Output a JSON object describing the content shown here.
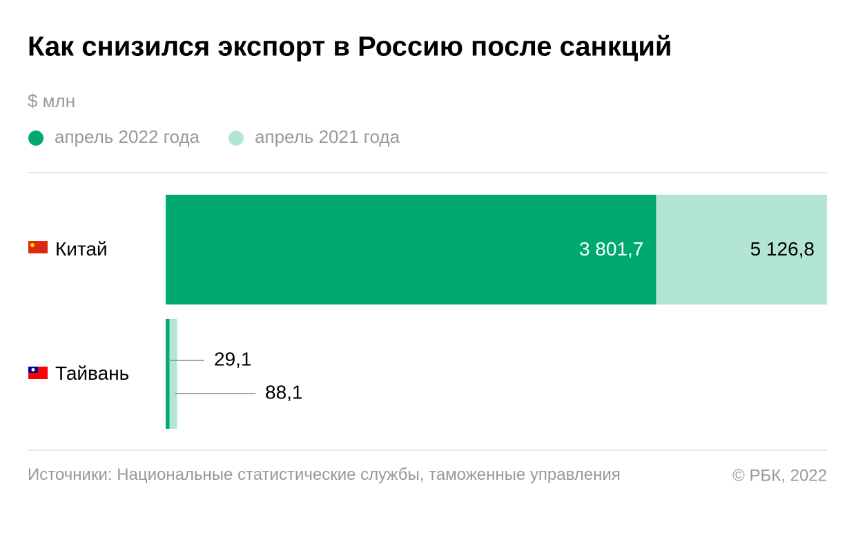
{
  "chart_data": {
    "type": "bar",
    "orientation": "horizontal",
    "overlap": true,
    "title": "Как снизился экспорт в Россию после санкций",
    "unit": "$ млн",
    "categories": [
      "Китай",
      "Тайвань"
    ],
    "series": [
      {
        "name": "апрель 2022 года",
        "color": "#00a972",
        "values": [
          3801.7,
          29.1
        ],
        "value_labels": [
          "3 801,7",
          "29,1"
        ]
      },
      {
        "name": "апрель 2021 года",
        "color": "#b3e5d4",
        "values": [
          5126.8,
          88.1
        ],
        "value_labels": [
          "5 126,8",
          "88,1"
        ]
      }
    ],
    "source": "Источники: Национальные статистические службы, таможенные управления",
    "copyright": "© РБК, 2022"
  }
}
